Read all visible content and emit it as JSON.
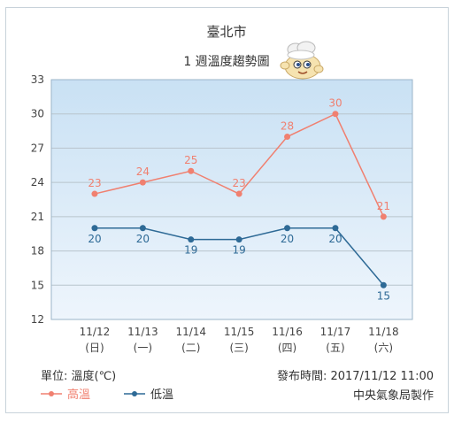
{
  "header": {
    "city": "臺北市",
    "title": "1 週溫度趨勢圖"
  },
  "footer": {
    "unit": "單位: 溫度(℃)",
    "issued": "發布時間: 2017/11/12 11:00",
    "publisher": "中央氣象局製作"
  },
  "colors": {
    "high": "#f08070",
    "low": "#2e6a96",
    "plot_top": "#c9e1f4",
    "plot_bottom": "#eef5fc",
    "grid": "#b8c4cc",
    "frame": "#9bb4c8"
  },
  "chart_data": {
    "type": "line",
    "title": "1 週溫度趨勢圖",
    "categories": [
      "11/12",
      "11/13",
      "11/14",
      "11/15",
      "11/16",
      "11/17",
      "11/18"
    ],
    "weekdays": [
      "(日)",
      "(一)",
      "(二)",
      "(三)",
      "(四)",
      "(五)",
      "(六)"
    ],
    "ylim": [
      12,
      33
    ],
    "yticks": [
      12,
      15,
      18,
      21,
      24,
      27,
      30,
      33
    ],
    "grid": true,
    "legend_position": "bottom-left",
    "series": [
      {
        "name": "高溫",
        "values": [
          23,
          24,
          25,
          23,
          28,
          30,
          21
        ],
        "color": "#f08070"
      },
      {
        "name": "低溫",
        "values": [
          20,
          20,
          19,
          19,
          20,
          20,
          15
        ],
        "color": "#2e6a96"
      }
    ]
  }
}
